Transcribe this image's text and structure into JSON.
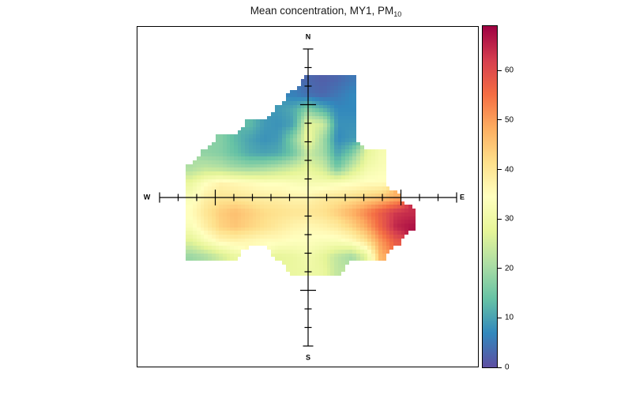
{
  "title": {
    "text": "Mean concentration, MY1, PM",
    "subscript": "10"
  },
  "compass": {
    "north": "N",
    "east": "E",
    "south": "S",
    "west": "W"
  },
  "colorbar": {
    "min": 0,
    "max": 69,
    "ticks": [
      0,
      10,
      20,
      30,
      40,
      50,
      60
    ],
    "colors": [
      "#5e4fa2",
      "#3288bd",
      "#66c2a5",
      "#abdda4",
      "#e6f598",
      "#ffffbf",
      "#fee08b",
      "#fdae61",
      "#f46d43",
      "#d53e4f",
      "#9e0142"
    ]
  },
  "chart_data": {
    "type": "heatmap",
    "title": "Mean concentration, MY1, PM10",
    "site": "MY1",
    "pollutant": "PM10",
    "statistic": "mean",
    "plot_style": "bivariate-polar-plot",
    "value_range": [
      0,
      69
    ],
    "radial_axis": {
      "max": 8,
      "tick_interval": 1,
      "major_tick_at": 5,
      "numeric_labels_shown": false
    },
    "colormap": {
      "name": "spectral-reversed",
      "stops": [
        "#5e4fa2",
        "#3288bd",
        "#66c2a5",
        "#abdda4",
        "#e6f598",
        "#ffffbf",
        "#fee08b",
        "#fdae61",
        "#f46d43",
        "#d53e4f",
        "#9e0142"
      ]
    },
    "grid": {
      "description": "Mean PM10 concentration on wind-component grid; rows north(+8) to south(-8), cols west(-8) to east(+8); null = no data (outside surface)",
      "x_range": [
        -8,
        8
      ],
      "y_range": [
        -8,
        8
      ],
      "nx": 21,
      "ny": 21,
      "values": [
        [
          null,
          null,
          null,
          null,
          null,
          null,
          null,
          null,
          null,
          null,
          null,
          null,
          null,
          null,
          null,
          null,
          null,
          null,
          null,
          null,
          null
        ],
        [
          null,
          null,
          null,
          null,
          null,
          null,
          null,
          null,
          null,
          null,
          null,
          null,
          null,
          null,
          null,
          null,
          null,
          null,
          null,
          null,
          null
        ],
        [
          null,
          null,
          null,
          null,
          null,
          null,
          null,
          null,
          null,
          null,
          3,
          2,
          3,
          5,
          null,
          null,
          null,
          null,
          null,
          null,
          null
        ],
        [
          null,
          null,
          null,
          null,
          null,
          null,
          null,
          null,
          null,
          6,
          4,
          3,
          5,
          7,
          null,
          null,
          null,
          null,
          null,
          null,
          null
        ],
        [
          null,
          null,
          null,
          null,
          null,
          null,
          null,
          null,
          9,
          11,
          17,
          12,
          7,
          7,
          null,
          null,
          null,
          null,
          null,
          null,
          null
        ],
        [
          null,
          null,
          null,
          null,
          null,
          null,
          13,
          9,
          8,
          10,
          28,
          25,
          8,
          8,
          null,
          null,
          null,
          null,
          null,
          null,
          null
        ],
        [
          null,
          null,
          null,
          null,
          17,
          13,
          10,
          8,
          9,
          17,
          30,
          20,
          7,
          9,
          null,
          null,
          null,
          null,
          null,
          null,
          null
        ],
        [
          null,
          null,
          null,
          18,
          17,
          14,
          11,
          10,
          11,
          15,
          24,
          20,
          10,
          16,
          28,
          32,
          null,
          null,
          null,
          null,
          null
        ],
        [
          null,
          null,
          21,
          23,
          22,
          20,
          19,
          20,
          22,
          25,
          28,
          25,
          15,
          24,
          31,
          33,
          null,
          null,
          null,
          null,
          null
        ],
        [
          null,
          null,
          29,
          34,
          37,
          36,
          35,
          34,
          34,
          33,
          32,
          32,
          33,
          34,
          35,
          35,
          null,
          null,
          null,
          null,
          null
        ],
        [
          null,
          null,
          33,
          38,
          40,
          40,
          39,
          38,
          38,
          37,
          37,
          39,
          40,
          41,
          43,
          45,
          48,
          null,
          null,
          null,
          null
        ],
        [
          null,
          null,
          35,
          40,
          44,
          46,
          44,
          42,
          41,
          40,
          40,
          41,
          44,
          48,
          53,
          58,
          63,
          64,
          null,
          null,
          null
        ],
        [
          null,
          null,
          33,
          38,
          43,
          45,
          43,
          41,
          39,
          37,
          36,
          37,
          39,
          43,
          49,
          57,
          65,
          67,
          null,
          null,
          null
        ],
        [
          null,
          null,
          27,
          32,
          36,
          37,
          36,
          35,
          35,
          34,
          34,
          33,
          33,
          35,
          41,
          51,
          58,
          null,
          null,
          null,
          null
        ],
        [
          null,
          null,
          19,
          21,
          25,
          29,
          null,
          null,
          28,
          29,
          31,
          28,
          23,
          20,
          28,
          48,
          null,
          null,
          null,
          null,
          null
        ],
        [
          null,
          null,
          null,
          null,
          null,
          null,
          null,
          null,
          null,
          29,
          30,
          29,
          23,
          null,
          null,
          null,
          null,
          null,
          null,
          null,
          null
        ],
        [
          null,
          null,
          null,
          null,
          null,
          null,
          null,
          null,
          null,
          null,
          null,
          null,
          null,
          null,
          null,
          null,
          null,
          null,
          null,
          null,
          null
        ],
        [
          null,
          null,
          null,
          null,
          null,
          null,
          null,
          null,
          null,
          null,
          null,
          null,
          null,
          null,
          null,
          null,
          null,
          null,
          null,
          null,
          null
        ],
        [
          null,
          null,
          null,
          null,
          null,
          null,
          null,
          null,
          null,
          null,
          null,
          null,
          null,
          null,
          null,
          null,
          null,
          null,
          null,
          null,
          null
        ],
        [
          null,
          null,
          null,
          null,
          null,
          null,
          null,
          null,
          null,
          null,
          null,
          null,
          null,
          null,
          null,
          null,
          null,
          null,
          null,
          null,
          null
        ],
        [
          null,
          null,
          null,
          null,
          null,
          null,
          null,
          null,
          null,
          null,
          null,
          null,
          null,
          null,
          null,
          null,
          null,
          null,
          null,
          null,
          null
        ]
      ]
    }
  }
}
